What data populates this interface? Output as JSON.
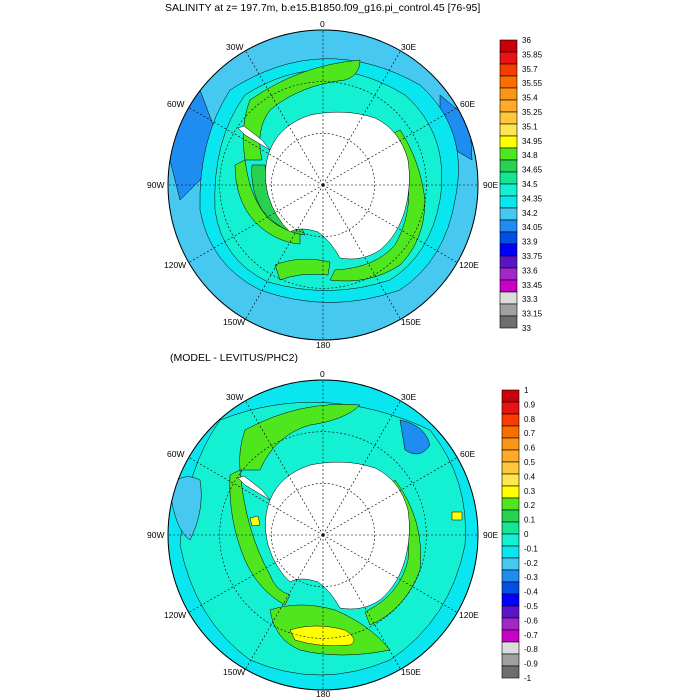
{
  "panel_top": {
    "title": "SALINITY at z= 197.7m, b.e15.B1850.f09_g16.pi_control.45 [76-95]",
    "longitude_labels": [
      "0",
      "30E",
      "60E",
      "90E",
      "120E",
      "150E",
      "180",
      "150W",
      "120W",
      "90W",
      "60W",
      "30W"
    ],
    "colorbar_labels": [
      "36",
      "35.85",
      "35.7",
      "35.55",
      "35.4",
      "35.25",
      "35.1",
      "34.95",
      "34.8",
      "34.65",
      "34.5",
      "34.35",
      "34.2",
      "34.05",
      "33.9",
      "33.75",
      "33.6",
      "33.45",
      "33.3",
      "33.15",
      "33"
    ],
    "colorbar_colors": [
      "#c8000a",
      "#e61414",
      "#fa3c00",
      "#fa6e00",
      "#fa9614",
      "#ffaa28",
      "#ffc83c",
      "#ffe650",
      "#ffff00",
      "#50e61e",
      "#28d250",
      "#14e696",
      "#14f0d2",
      "#0ae6f0",
      "#46c8f0",
      "#1e8cf0",
      "#0050e6",
      "#0000ff",
      "#5a14c8",
      "#a028c8",
      "#c800c8",
      "#dcdcdc",
      "#a0a0a0",
      "#6e6e6e"
    ]
  },
  "panel_bottom": {
    "title": "(MODEL - LEVITUS/PHC2)",
    "longitude_labels": [
      "0",
      "30E",
      "60E",
      "90E",
      "120E",
      "150E",
      "180",
      "150W",
      "120W",
      "90W",
      "60W",
      "30W"
    ],
    "colorbar_labels": [
      "1",
      "0.9",
      "0.8",
      "0.7",
      "0.6",
      "0.5",
      "0.4",
      "0.3",
      "0.2",
      "0.1",
      "0",
      "-0.1",
      "-0.2",
      "-0.3",
      "-0.4",
      "-0.5",
      "-0.6",
      "-0.7",
      "-0.8",
      "-0.9",
      "-1"
    ],
    "colorbar_colors": [
      "#c8000a",
      "#e61414",
      "#fa3c00",
      "#fa6e00",
      "#fa9614",
      "#ffaa28",
      "#ffc83c",
      "#ffe650",
      "#ffff00",
      "#50e61e",
      "#28d250",
      "#14e696",
      "#14f0d2",
      "#0ae6f0",
      "#46c8f0",
      "#1e8cf0",
      "#0050e6",
      "#0000ff",
      "#5a14c8",
      "#a028c8",
      "#c800c8",
      "#dcdcdc",
      "#a0a0a0",
      "#6e6e6e"
    ]
  },
  "map_colors": {
    "ocean_base": "#46c8f0",
    "ocean_light": "#14f0d2",
    "ocean_mid": "#0ae6f0",
    "band_green": "#50e61e",
    "band_teal": "#28d250",
    "deep_blue": "#1e8cf0",
    "yellow": "#ffff00",
    "land": "#ffffff"
  }
}
